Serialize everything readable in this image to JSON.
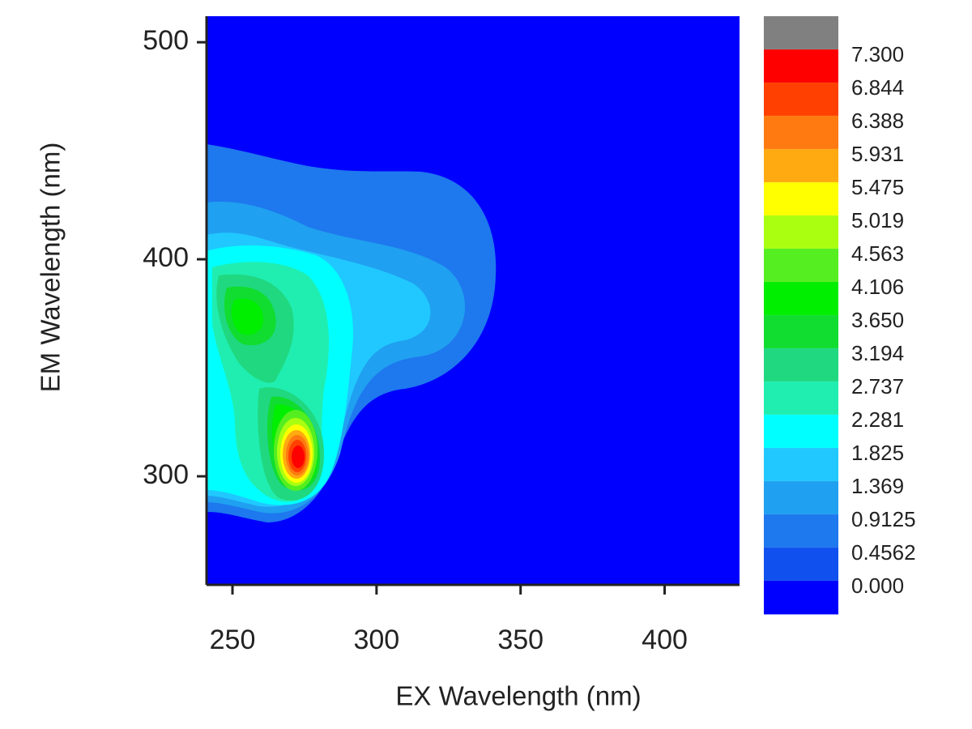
{
  "chart_data": {
    "type": "contour",
    "xlabel": "EX Wavelength (nm)",
    "ylabel": "EM Wavelength (nm)",
    "xlim": [
      241,
      426
    ],
    "ylim": [
      250,
      512
    ],
    "xticks": [
      250,
      300,
      350,
      400
    ],
    "yticks": [
      300,
      400,
      500
    ],
    "colorbar_ticks": [
      {
        "value": 7.3,
        "label": "7.300"
      },
      6.844,
      6.388,
      5.931,
      5.475,
      5.019,
      4.563,
      4.106,
      {
        "value": 3.65,
        "label": "3.650"
      },
      3.194,
      2.737,
      2.281,
      1.825,
      1.369,
      0.9125,
      0.4562,
      {
        "value": 0,
        "label": "0.000"
      }
    ],
    "colors": [
      "#808080",
      "#ff0000",
      "#ff4000",
      "#ff7a10",
      "#ffaa10",
      "#ffff00",
      "#aaff10",
      "#55ee20",
      "#00ee00",
      "#10dd30",
      "#20d880",
      "#20eeb0",
      "#00ffff",
      "#20c8ff",
      "#20a0f0",
      "#1e78ee",
      "#1050ee",
      "#0000ff"
    ]
  }
}
